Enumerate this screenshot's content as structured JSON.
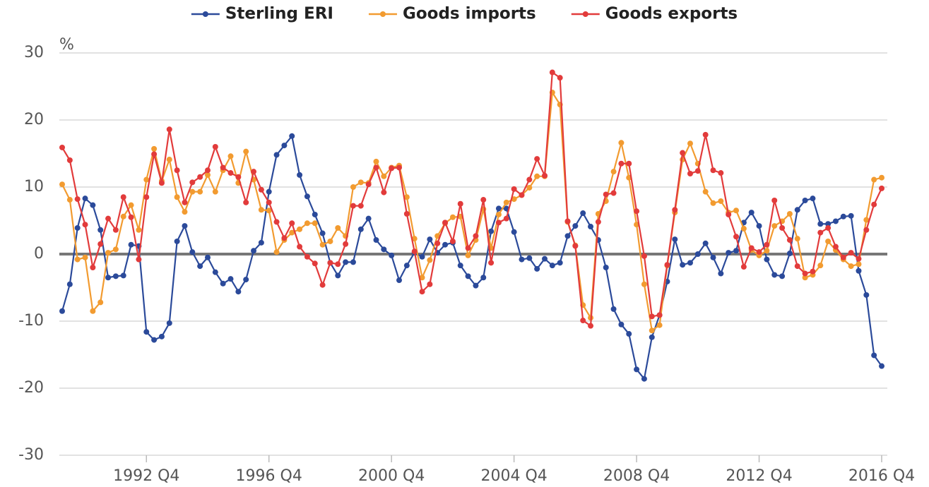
{
  "chart_data": {
    "type": "line",
    "ylabel": "%",
    "categories": [
      null,
      null,
      null,
      null,
      null,
      null,
      null,
      null,
      null,
      null,
      null,
      "1992 Q4",
      null,
      null,
      null,
      null,
      null,
      null,
      null,
      null,
      null,
      null,
      null,
      null,
      null,
      null,
      null,
      "1996 Q4",
      null,
      null,
      null,
      null,
      null,
      null,
      null,
      null,
      null,
      null,
      null,
      null,
      null,
      null,
      null,
      "2000 Q4",
      null,
      null,
      null,
      null,
      null,
      null,
      null,
      null,
      null,
      null,
      null,
      null,
      null,
      null,
      null,
      "2004 Q4",
      null,
      null,
      null,
      null,
      null,
      null,
      null,
      null,
      null,
      null,
      null,
      null,
      null,
      null,
      null,
      "2008 Q4",
      null,
      null,
      null,
      null,
      null,
      null,
      null,
      null,
      null,
      null,
      null,
      null,
      null,
      null,
      null,
      "2012 Q4",
      null,
      null,
      null,
      null,
      null,
      null,
      null,
      null,
      null,
      null,
      null,
      null,
      null,
      null,
      null,
      "2016 Q4"
    ],
    "series": [
      {
        "name": "Sterling ERI",
        "color": "#2b4a9a",
        "values": [
          -8.5,
          -4.5,
          3.9,
          8.3,
          7.3,
          3.6,
          -3.5,
          -3.3,
          -3.2,
          1.4,
          1.2,
          -11.6,
          -12.8,
          -12.3,
          -10.3,
          1.9,
          4.2,
          0.3,
          -1.8,
          -0.5,
          -2.7,
          -4.4,
          -3.7,
          -5.6,
          -3.8,
          0.5,
          1.7,
          9.3,
          14.8,
          16.2,
          17.6,
          11.8,
          8.6,
          5.9,
          3.1,
          -1.3,
          -3.2,
          -1.2,
          -1.2,
          3.7,
          5.3,
          2.1,
          0.7,
          -0.2,
          -3.9,
          -1.7,
          0.2,
          -0.4,
          2.2,
          0.2,
          1.4,
          1.7,
          -1.7,
          -3.3,
          -4.7,
          -3.5,
          3.4,
          6.8,
          6.8,
          3.3,
          -0.8,
          -0.6,
          -2.2,
          -0.7,
          -1.7,
          -1.3,
          2.7,
          4.2,
          6.1,
          4.1,
          2.1,
          -2.0,
          -8.2,
          -10.5,
          -11.9,
          -17.2,
          -18.6,
          -12.4,
          -9.1,
          -4.1,
          2.2,
          -1.6,
          -1.3,
          0.0,
          1.6,
          -0.5,
          -2.9,
          0.2,
          0.5,
          4.7,
          6.2,
          4.2,
          -0.8,
          -3.1,
          -3.3,
          0.1,
          6.6,
          8.0,
          8.3,
          4.5,
          4.5,
          4.9,
          5.6,
          5.7,
          -2.5,
          -6.1,
          -15.1,
          -16.7
        ]
      },
      {
        "name": "Goods imports",
        "color": "#f29b30",
        "values": [
          10.4,
          8.1,
          -0.8,
          -0.5,
          -8.5,
          -7.2,
          0.2,
          0.7,
          5.6,
          7.3,
          3.6,
          11.1,
          15.7,
          10.9,
          14.1,
          8.5,
          6.3,
          9.3,
          9.3,
          11.8,
          9.3,
          12.5,
          14.6,
          10.6,
          15.3,
          11.1,
          6.6,
          6.5,
          0.3,
          2.1,
          3.2,
          3.7,
          4.6,
          4.6,
          1.4,
          1.9,
          3.9,
          2.7,
          10.0,
          10.7,
          10.6,
          13.8,
          11.6,
          12.9,
          13.2,
          8.5,
          2.3,
          -3.5,
          -0.9,
          2.7,
          4.6,
          5.5,
          5.6,
          -0.2,
          2.1,
          6.7,
          0.9,
          5.9,
          7.7,
          8.2,
          8.8,
          9.9,
          11.6,
          11.6,
          24.1,
          22.3,
          4.8,
          1.3,
          -7.6,
          -9.5,
          6.0,
          7.9,
          12.3,
          16.6,
          11.4,
          4.4,
          -4.5,
          -11.4,
          -10.6,
          -1.7,
          6.2,
          14.1,
          16.5,
          13.5,
          9.3,
          7.6,
          7.9,
          6.2,
          6.5,
          3.8,
          0.6,
          -0.2,
          0.5,
          4.2,
          4.9,
          6.0,
          2.3,
          -3.5,
          -3.1,
          -1.7,
          1.9,
          0.6,
          -0.8,
          -1.8,
          -1.5,
          5.1,
          11.1,
          11.4
        ]
      },
      {
        "name": "Goods exports",
        "color": "#e23b3b",
        "values": [
          15.9,
          14.0,
          8.2,
          4.4,
          -2.0,
          1.5,
          5.3,
          3.6,
          8.5,
          5.5,
          -0.8,
          8.5,
          14.9,
          10.6,
          18.6,
          12.5,
          7.7,
          10.7,
          11.5,
          12.5,
          16.0,
          12.9,
          12.1,
          11.5,
          7.7,
          12.3,
          9.6,
          7.7,
          4.8,
          2.4,
          4.6,
          1.1,
          -0.4,
          -1.4,
          -4.6,
          -1.3,
          -1.5,
          1.5,
          7.2,
          7.2,
          10.4,
          12.9,
          9.2,
          12.8,
          12.9,
          6.0,
          0.4,
          -5.6,
          -4.5,
          1.6,
          4.7,
          1.9,
          7.5,
          0.9,
          2.7,
          8.1,
          -1.3,
          4.7,
          5.3,
          9.7,
          8.8,
          11.1,
          14.2,
          11.7,
          27.1,
          26.3,
          4.9,
          1.2,
          -9.9,
          -10.7,
          4.8,
          8.9,
          9.1,
          13.5,
          13.5,
          6.4,
          -0.3,
          -9.3,
          -9.1,
          -1.6,
          6.6,
          15.1,
          12.0,
          12.4,
          17.8,
          12.5,
          12.1,
          5.9,
          2.6,
          -1.9,
          0.9,
          0.3,
          1.4,
          8.0,
          3.9,
          2.1,
          -1.8,
          -2.9,
          -2.6,
          3.2,
          3.9,
          1.1,
          -0.5,
          0.2,
          -0.7,
          3.6,
          7.4,
          9.8
        ]
      }
    ],
    "ylim": [
      -30,
      30
    ],
    "yticks": [
      -30,
      -20,
      -10,
      0,
      10,
      20,
      30
    ],
    "grid": true,
    "legend": "top"
  }
}
